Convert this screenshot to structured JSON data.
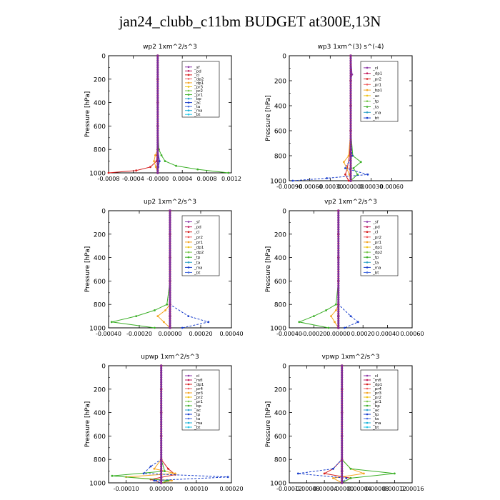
{
  "figure": {
    "title": "jan24_clubb_c11bm  BUDGET at300E,13N"
  },
  "chart_data": [
    {
      "type": "line",
      "title": "wp2   1xm^2/s^3",
      "ylabel": "Pressure [hPa]",
      "ylim": [
        1000,
        0
      ],
      "xlim": [
        -0.0008,
        0.0012
      ],
      "xticks": [
        -0.0008,
        -0.0004,
        0.0,
        0.0004,
        0.0008,
        0.0012
      ],
      "xtick_labels": [
        "-0.0008",
        "-0.0004",
        "-0.0000",
        "0.0004",
        "0.0008",
        "0.0012"
      ],
      "yticks": [
        0,
        200,
        400,
        600,
        800,
        1000
      ],
      "legend": {
        "position": "top-right",
        "entries": [
          "_sf",
          "_pd",
          "_cl",
          "_dp2",
          "_dp1",
          "_pr3",
          "_pr2",
          "_pr1",
          "_bp",
          "_ac",
          "_ta",
          "_ma",
          "_bt"
        ]
      },
      "series": [
        {
          "name": "_sf",
          "color": "#8e3aa8",
          "y": [
            0,
            200,
            400,
            600,
            800,
            850,
            900,
            950,
            1000
          ],
          "values": [
            0,
            0,
            0,
            0,
            0,
            0,
            0,
            0,
            0
          ]
        },
        {
          "name": "_dp1",
          "color": "#d62020",
          "y": [
            0,
            200,
            400,
            600,
            800,
            850,
            900,
            950,
            980,
            1000
          ],
          "values": [
            0,
            0,
            0,
            0,
            0,
            -1e-05,
            -2e-05,
            -0.00012,
            -0.00035,
            -0.0008
          ]
        },
        {
          "name": "_pr2",
          "color": "#f5a623",
          "y": [
            0,
            200,
            400,
            600,
            800,
            850,
            900,
            950,
            1000
          ],
          "values": [
            0,
            0,
            0,
            0,
            0,
            -4e-05,
            -6e-05,
            -3e-05,
            0
          ]
        },
        {
          "name": "_ac",
          "color": "#3cb028",
          "y": [
            0,
            200,
            400,
            600,
            800,
            850,
            900,
            940,
            970,
            1000
          ],
          "values": [
            0,
            0,
            0,
            0,
            2e-05,
            6e-05,
            0.00012,
            0.0003,
            0.00065,
            0.00115
          ]
        },
        {
          "name": "_ta",
          "color": "#1a3fcc",
          "y": [
            0,
            200,
            400,
            600,
            800,
            900,
            950,
            1000
          ],
          "values": [
            0,
            0,
            0,
            0,
            0,
            3e-05,
            1e-05,
            0
          ]
        },
        {
          "name": "_bt",
          "color": "#c81414",
          "y": [
            0,
            200,
            400,
            600,
            800,
            900,
            1000
          ],
          "values": [
            0,
            0,
            0,
            0,
            0,
            0,
            0
          ]
        }
      ]
    },
    {
      "type": "line",
      "title": "wp3   1xm^(3) s^(-4)",
      "ylabel": "Pressure [hPa]",
      "ylim": [
        1000,
        0
      ],
      "xlim": [
        -0.0009,
        0.0009
      ],
      "xticks": [
        -0.0009,
        -0.0006,
        -0.0003,
        0.0,
        0.0003,
        0.0006
      ],
      "xtick_labels": [
        "-0.00090",
        "-0.00060",
        "-0.00030",
        "0.000000",
        "0.00030",
        "0.00060"
      ],
      "yticks": [
        0,
        200,
        400,
        600,
        800,
        1000
      ],
      "legend": {
        "position": "top-right",
        "entries": [
          "_cl",
          "_dp1",
          "_pr2",
          "_pr1",
          "_bp1",
          "_ac",
          "_tp",
          "_ta",
          "_ma",
          "_bt"
        ]
      },
      "series": [
        {
          "name": "_cl",
          "color": "#8e3aa8",
          "y": [
            0,
            150,
            200,
            400,
            600,
            800,
            900,
            1000
          ],
          "values": [
            0,
            2e-05,
            0,
            0,
            0,
            0,
            0,
            0
          ]
        },
        {
          "name": "_dp1",
          "color": "#d62020",
          "y": [
            0,
            200,
            400,
            600,
            800,
            900,
            950,
            1000
          ],
          "values": [
            0,
            0,
            0,
            0,
            -2e-05,
            -5e-05,
            -8e-05,
            -3e-05
          ]
        },
        {
          "name": "_pr2",
          "color": "#f5a623",
          "y": [
            0,
            200,
            400,
            600,
            800,
            850,
            900,
            950,
            1000
          ],
          "values": [
            0,
            0,
            0,
            0,
            -3e-05,
            -0.0001,
            -6e-05,
            -2e-05,
            0
          ]
        },
        {
          "name": "_ac",
          "color": "#3cb028",
          "y": [
            0,
            200,
            400,
            600,
            800,
            850,
            900,
            950,
            1000
          ],
          "values": [
            0,
            0,
            0,
            0,
            3e-05,
            0.00015,
            4e-05,
            0.0001,
            0
          ]
        },
        {
          "name": "_tp",
          "color": "#1a3fcc",
          "y": [
            0,
            200,
            400,
            600,
            800,
            900,
            950,
            980,
            1000
          ],
          "values": [
            0,
            0,
            0,
            0,
            2e-05,
            -8e-05,
            0.00025,
            -0.00035,
            -0.00085
          ]
        },
        {
          "name": "_bt",
          "color": "#c81414",
          "y": [
            0,
            200,
            400,
            600,
            800,
            900,
            1000
          ],
          "values": [
            0,
            0,
            0,
            0,
            0,
            0,
            0
          ]
        }
      ]
    },
    {
      "type": "line",
      "title": "up2   1xm^2/s^3",
      "ylabel": "Pressure [hPa]",
      "ylim": [
        1000,
        0
      ],
      "xlim": [
        -0.0004,
        0.0004
      ],
      "xticks": [
        -0.0004,
        -0.0002,
        0.0,
        0.0002,
        0.0004
      ],
      "xtick_labels": [
        "-0.00040",
        "-0.00020",
        "0.00000",
        "0.00020",
        "0.00040"
      ],
      "yticks": [
        0,
        200,
        400,
        600,
        800,
        1000
      ],
      "legend": {
        "position": "top-right",
        "entries": [
          "_sf",
          "_pd",
          "_cl",
          "_pr2",
          "_pr1",
          "_dp1",
          "_dp2",
          "_tp",
          "_ta",
          "_ma",
          "_bt"
        ]
      },
      "series": [
        {
          "name": "_sf",
          "color": "#8e3aa8",
          "y": [
            0,
            200,
            400,
            600,
            800,
            900,
            1000
          ],
          "values": [
            0,
            0,
            0,
            0,
            0,
            0,
            0
          ]
        },
        {
          "name": "_pr1",
          "color": "#f5a623",
          "y": [
            0,
            200,
            400,
            600,
            800,
            850,
            900,
            950,
            1000
          ],
          "values": [
            0,
            0,
            0,
            0,
            0,
            -3e-05,
            -8e-05,
            -4e-05,
            0
          ]
        },
        {
          "name": "_dp1",
          "color": "#3cb028",
          "y": [
            0,
            200,
            400,
            600,
            800,
            850,
            900,
            950,
            1000
          ],
          "values": [
            0,
            0,
            0,
            0,
            -2e-05,
            -0.0001,
            -0.00022,
            -0.00038,
            -0.0001
          ]
        },
        {
          "name": "_tp",
          "color": "#1a3fcc",
          "y": [
            0,
            200,
            400,
            600,
            800,
            900,
            950,
            1000
          ],
          "values": [
            0,
            0,
            0,
            0,
            0,
            0.00012,
            0.00025,
            8e-05
          ]
        },
        {
          "name": "_bt",
          "color": "#c81414",
          "y": [
            0,
            200,
            400,
            600,
            800,
            900,
            1000
          ],
          "values": [
            0,
            0,
            0,
            0,
            0,
            0,
            0
          ]
        }
      ]
    },
    {
      "type": "line",
      "title": "vp2   1xm^2/s^3",
      "ylabel": "Pressure [hPa]",
      "ylim": [
        1000,
        0
      ],
      "xlim": [
        -0.0004,
        0.0006
      ],
      "xticks": [
        -0.0004,
        -0.0002,
        0.0,
        0.0002,
        0.0004,
        0.0006
      ],
      "xtick_labels": [
        "-0.00040",
        "-0.00020",
        "0.00000",
        "0.00020",
        "0.00040",
        "0.00060"
      ],
      "yticks": [
        0,
        200,
        400,
        600,
        800,
        1000
      ],
      "legend": {
        "position": "top-right",
        "entries": [
          "_sf",
          "_pd",
          "_cl",
          "_pr2",
          "_pr1",
          "_dp1",
          "_dp2",
          "_tp",
          "_ta",
          "_ma",
          "_bt"
        ]
      },
      "series": [
        {
          "name": "_sf",
          "color": "#8e3aa8",
          "y": [
            0,
            200,
            400,
            600,
            800,
            900,
            1000
          ],
          "values": [
            0,
            0,
            0,
            0,
            0,
            0,
            0
          ]
        },
        {
          "name": "_pr1",
          "color": "#f5a623",
          "y": [
            0,
            200,
            400,
            600,
            800,
            850,
            900,
            950,
            1000
          ],
          "values": [
            0,
            0,
            0,
            0,
            0,
            -2e-05,
            -6e-05,
            -3e-05,
            0
          ]
        },
        {
          "name": "_dp1",
          "color": "#3cb028",
          "y": [
            0,
            200,
            400,
            600,
            800,
            850,
            900,
            950,
            1000
          ],
          "values": [
            0,
            0,
            0,
            0,
            -2e-05,
            -0.0001,
            -0.0002,
            -0.00032,
            -8e-05
          ]
        },
        {
          "name": "_tp",
          "color": "#1a3fcc",
          "y": [
            0,
            200,
            400,
            600,
            800,
            900,
            950,
            1000
          ],
          "values": [
            0,
            0,
            0,
            0,
            0,
            0.0001,
            0.00016,
            5e-05
          ]
        },
        {
          "name": "_bt",
          "color": "#c81414",
          "y": [
            0,
            200,
            400,
            600,
            800,
            900,
            1000
          ],
          "values": [
            0,
            0,
            0,
            0,
            0,
            0,
            0
          ]
        }
      ]
    },
    {
      "type": "line",
      "title": "upwp   1xm^2/s^3",
      "ylabel": "Pressure [hPa]",
      "ylim": [
        1000,
        0
      ],
      "xlim": [
        -0.00015,
        0.0002
      ],
      "xticks": [
        -0.0001,
        0.0,
        0.0001,
        0.0002
      ],
      "xtick_labels": [
        "-0.00010",
        "0.00000",
        "0.00010",
        "0.00020"
      ],
      "yticks": [
        0,
        200,
        400,
        600,
        800,
        1000
      ],
      "legend": {
        "position": "top-right",
        "entries": [
          "_cl",
          "_mfl",
          "_dp1",
          "_pr4",
          "_pr3",
          "_pr2",
          "_pr1",
          "_bp",
          "_ac",
          "_tp",
          "_ta",
          "_ma",
          "_bt"
        ]
      },
      "series": [
        {
          "name": "_cl",
          "color": "#8e3aa8",
          "y": [
            0,
            200,
            400,
            600,
            800,
            900,
            1000
          ],
          "values": [
            0,
            0,
            0,
            0,
            0,
            0,
            0
          ]
        },
        {
          "name": "_dp1",
          "color": "#d62020",
          "y": [
            0,
            200,
            400,
            600,
            800,
            880,
            930,
            970,
            1000
          ],
          "values": [
            0,
            0,
            0,
            0,
            0,
            2e-05,
            4e-05,
            -3e-05,
            0
          ]
        },
        {
          "name": "_pr3",
          "color": "#f5a623",
          "y": [
            0,
            200,
            400,
            600,
            800,
            880,
            920,
            950,
            980,
            1000
          ],
          "values": [
            0,
            0,
            0,
            0,
            0,
            -2e-05,
            4e-05,
            -0.0001,
            3e-05,
            0
          ]
        },
        {
          "name": "_ac",
          "color": "#3cb028",
          "y": [
            0,
            200,
            400,
            600,
            800,
            900,
            940,
            980,
            1000
          ],
          "values": [
            0,
            0,
            0,
            0,
            0,
            1e-05,
            -0.00014,
            2e-05,
            0
          ]
        },
        {
          "name": "_tp",
          "color": "#1a3fcc",
          "y": [
            0,
            200,
            400,
            600,
            800,
            860,
            920,
            950,
            980,
            1000
          ],
          "values": [
            0,
            0,
            0,
            0,
            0,
            -3e-05,
            -5e-05,
            0.00019,
            -2e-05,
            0
          ]
        },
        {
          "name": "_bt",
          "color": "#c81414",
          "y": [
            0,
            200,
            400,
            600,
            800,
            900,
            1000
          ],
          "values": [
            0,
            0,
            0,
            0,
            0,
            0,
            0
          ]
        }
      ]
    },
    {
      "type": "line",
      "title": "vpwp   1xm^2/s^3",
      "ylabel": "Pressure [hPa]",
      "ylim": [
        1000,
        0
      ],
      "xlim": [
        -0.00012,
        0.00016
      ],
      "xticks": [
        -0.00012,
        -8e-05,
        -4e-05,
        0.0,
        4e-05,
        8e-05,
        0.00012,
        0.00016
      ],
      "xtick_labels": [
        "-0.00012",
        "-0.00008",
        "-0.00004",
        "0.00000",
        "0.00004",
        "0.00008",
        "0.00012",
        "0.00016"
      ],
      "yticks": [
        0,
        200,
        400,
        600,
        800,
        1000
      ],
      "legend": {
        "position": "top-right",
        "entries": [
          "_cl",
          "_mfl",
          "_dp1",
          "_pr4",
          "_pr3",
          "_pr2",
          "_pr1",
          "_bp",
          "_ac",
          "_tp",
          "_ta",
          "_ma",
          "_bt"
        ]
      },
      "series": [
        {
          "name": "_cl",
          "color": "#8e3aa8",
          "y": [
            0,
            200,
            400,
            600,
            800,
            900,
            1000
          ],
          "values": [
            0,
            0,
            0,
            0,
            0,
            0,
            0
          ]
        },
        {
          "name": "_dp1",
          "color": "#d62020",
          "y": [
            0,
            200,
            400,
            600,
            800,
            880,
            920,
            960,
            1000
          ],
          "values": [
            0,
            0,
            0,
            0,
            0,
            -2e-05,
            -4e-05,
            2e-05,
            0
          ]
        },
        {
          "name": "_pr3",
          "color": "#f5a623",
          "y": [
            0,
            200,
            400,
            600,
            800,
            880,
            920,
            960,
            1000
          ],
          "values": [
            0,
            0,
            0,
            0,
            0,
            2e-05,
            5e-05,
            -2e-05,
            0
          ]
        },
        {
          "name": "_ac",
          "color": "#3cb028",
          "y": [
            0,
            200,
            400,
            600,
            800,
            880,
            920,
            960,
            1000
          ],
          "values": [
            0,
            0,
            0,
            0,
            0,
            2e-05,
            0.00012,
            2e-05,
            0
          ]
        },
        {
          "name": "_tp",
          "color": "#1a3fcc",
          "y": [
            0,
            200,
            400,
            600,
            800,
            880,
            920,
            960,
            1000
          ],
          "values": [
            0,
            0,
            0,
            0,
            0,
            -2e-05,
            -0.0001,
            1e-05,
            0
          ]
        },
        {
          "name": "_bt",
          "color": "#c81414",
          "y": [
            0,
            200,
            400,
            600,
            800,
            900,
            1000
          ],
          "values": [
            0,
            0,
            0,
            0,
            0,
            0,
            0
          ]
        }
      ]
    }
  ]
}
